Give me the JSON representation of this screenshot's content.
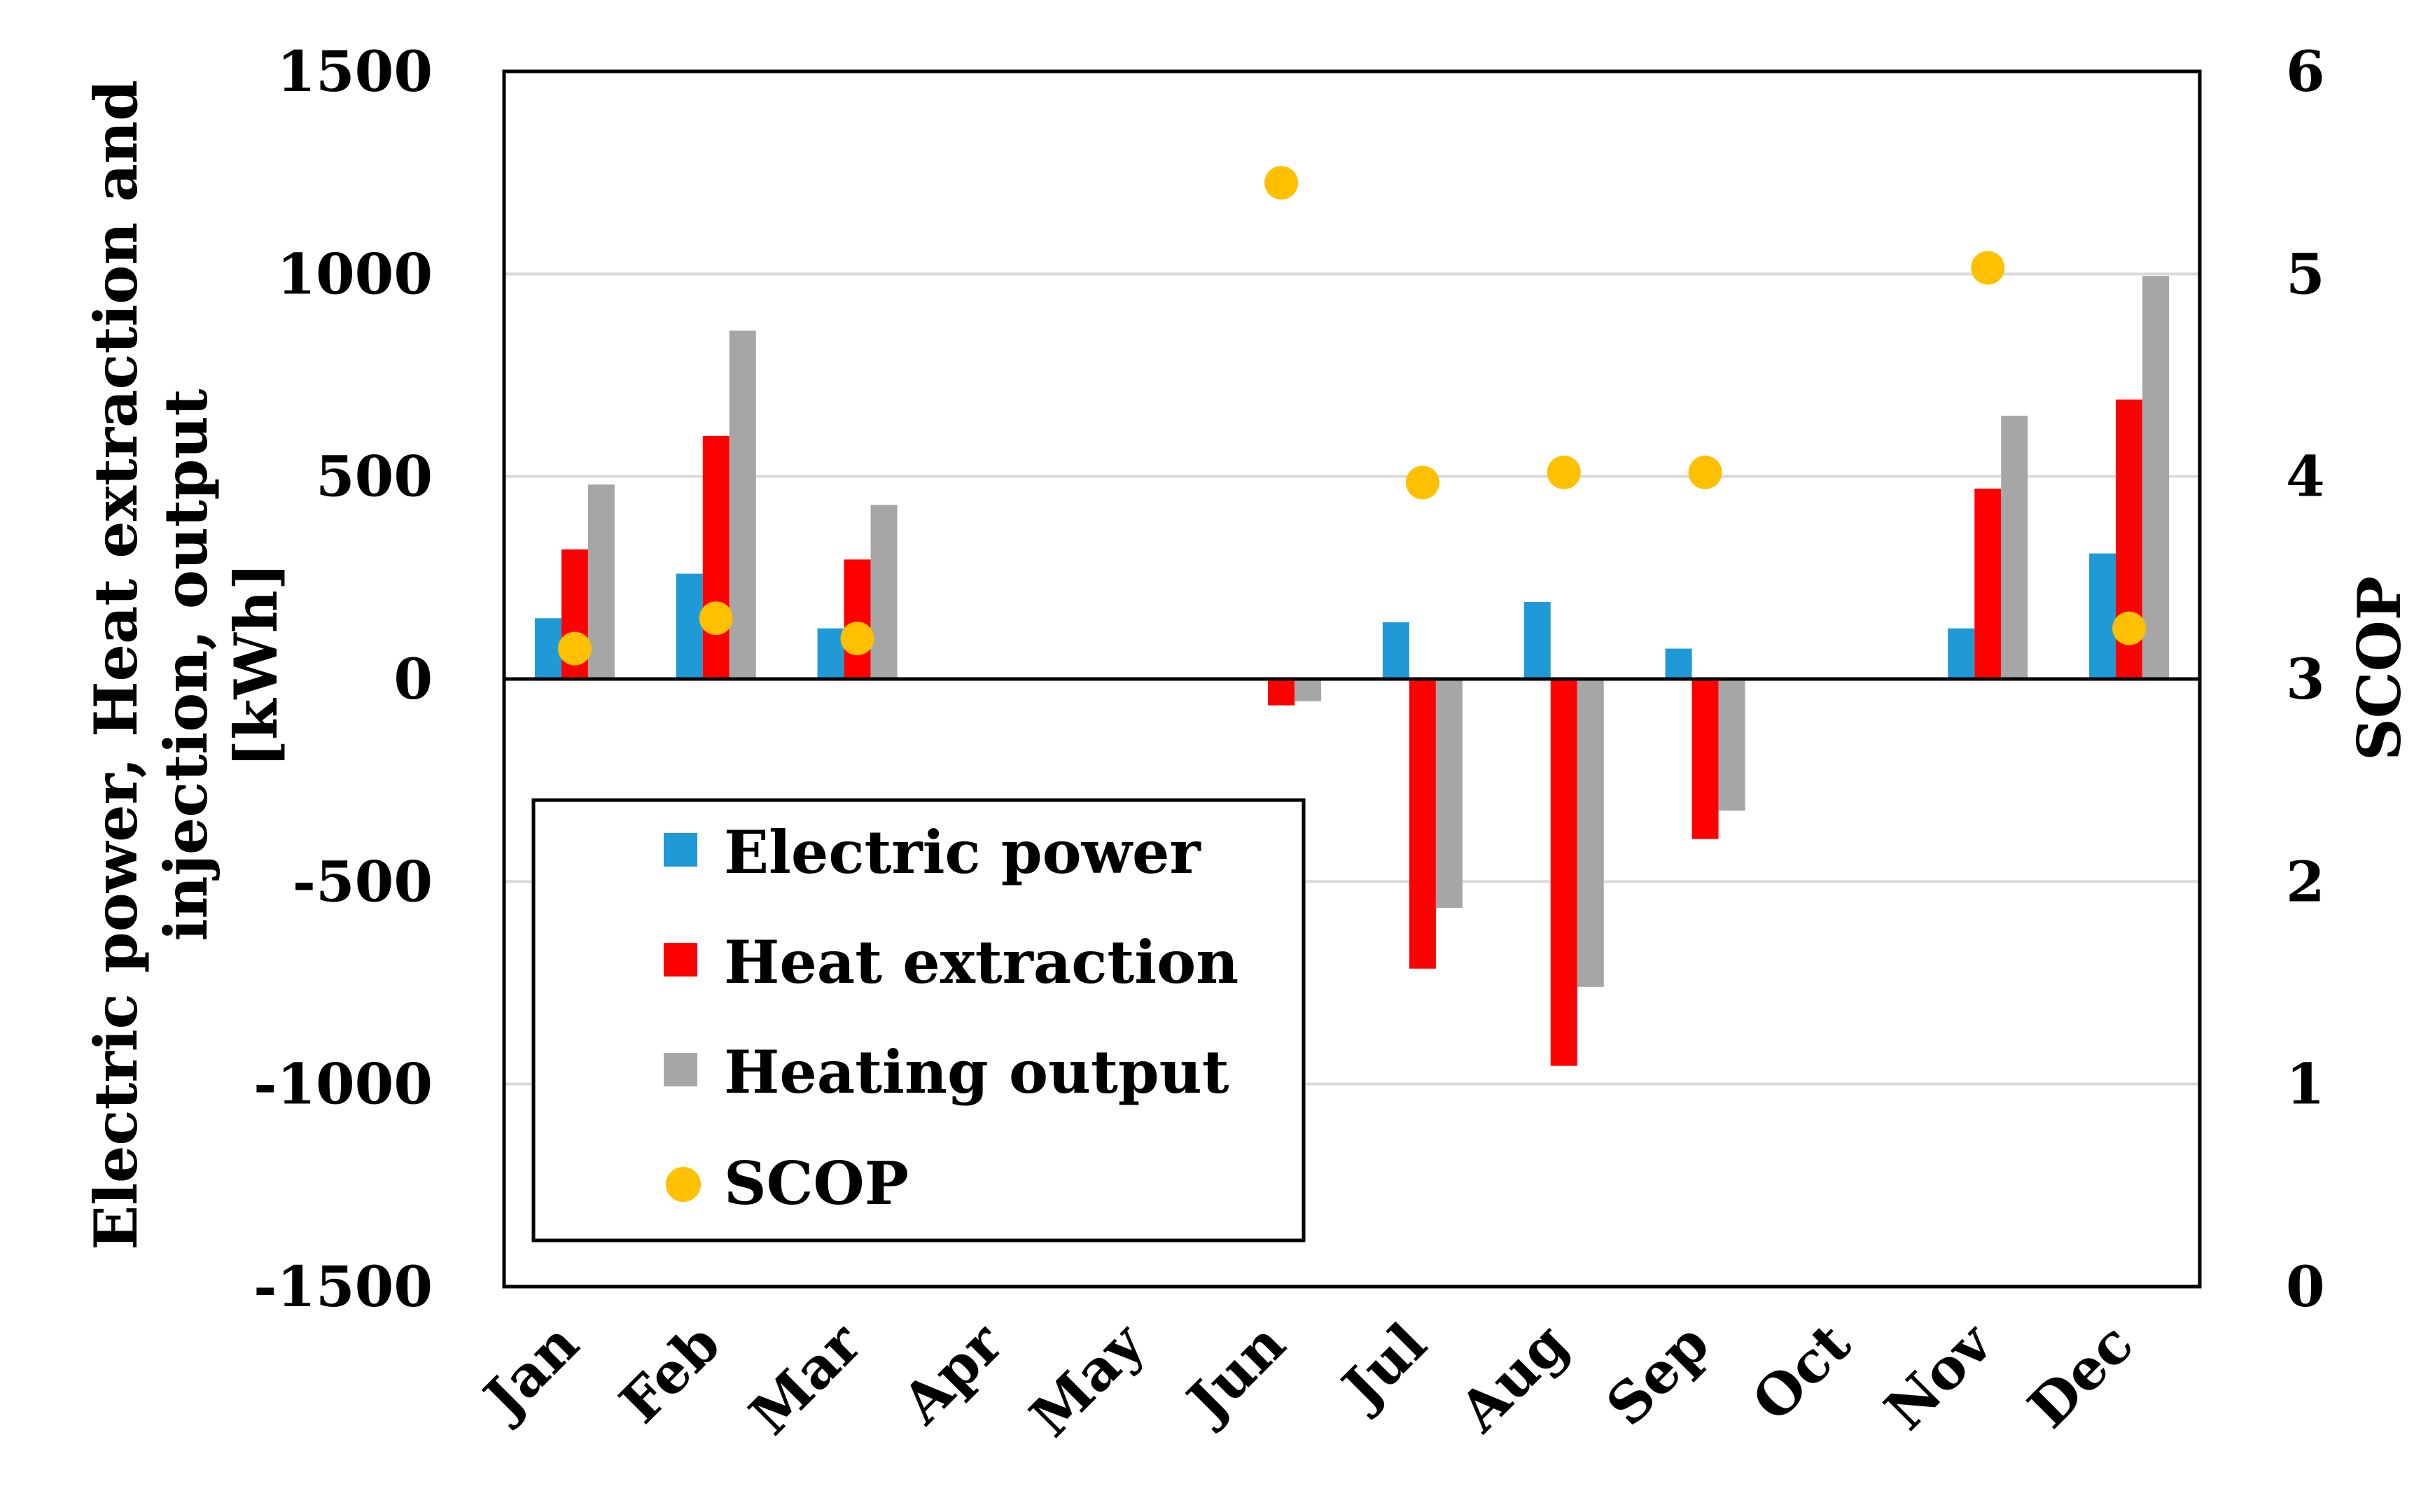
{
  "chart_data": {
    "type": "bar",
    "categories": [
      "Jan",
      "Feb",
      "Mar",
      "Apr",
      "May",
      "Jun",
      "Jul",
      "Aug",
      "Sep",
      "Oct",
      "Nov",
      "Dec"
    ],
    "series": [
      {
        "name": "Electric power",
        "axis": "left",
        "kind": "bar",
        "color": "#1f9ad6",
        "values": [
          150,
          260,
          125,
          null,
          null,
          null,
          140,
          190,
          75,
          null,
          125,
          310
        ]
      },
      {
        "name": "Heat extraction",
        "axis": "left",
        "kind": "bar",
        "color": "#ff0000",
        "values": [
          320,
          600,
          295,
          null,
          null,
          -65,
          -715,
          -955,
          -395,
          null,
          470,
          690
        ]
      },
      {
        "name": "Heating output",
        "axis": "left",
        "kind": "bar",
        "color": "#a6a6a6",
        "values": [
          480,
          860,
          430,
          null,
          null,
          -55,
          -565,
          -760,
          -325,
          null,
          650,
          995
        ]
      },
      {
        "name": "SCOP",
        "axis": "right",
        "kind": "scatter",
        "color": "#ffc000",
        "values": [
          3.15,
          3.3,
          3.2,
          null,
          null,
          5.45,
          3.97,
          4.02,
          4.02,
          null,
          5.03,
          3.25
        ]
      }
    ],
    "y_left": {
      "label_lines": [
        "Electric power, Heat extraction and",
        "injection, output",
        "[kWh]"
      ],
      "ylim": [
        -1500,
        1500
      ],
      "ticks": [
        "1500",
        "1000",
        "500",
        "0",
        "-500",
        "-1000",
        "-1500"
      ]
    },
    "y_right": {
      "label": "SCOP",
      "ylim": [
        0,
        6
      ],
      "ticks": [
        "6",
        "5",
        "4",
        "3",
        "2",
        "1",
        "0"
      ]
    },
    "grid": true,
    "legend_position": "bottom-left"
  }
}
